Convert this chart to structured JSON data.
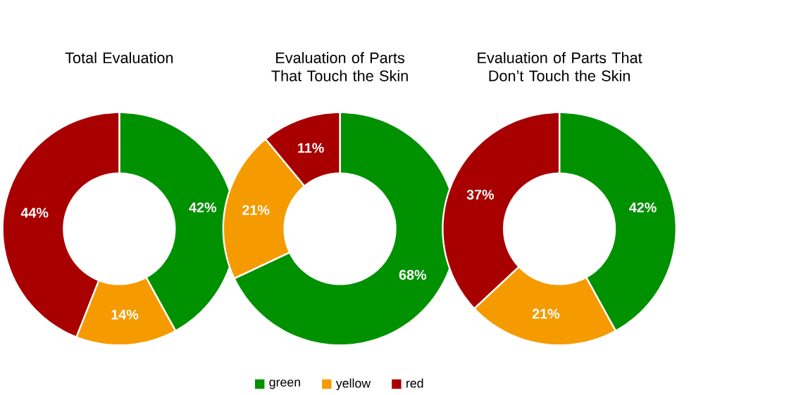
{
  "chart_data": [
    {
      "type": "donut",
      "title": "Total Evaluation",
      "categories": [
        null,
        null,
        null
      ],
      "values": [
        42,
        14,
        44
      ],
      "colors": [
        "#009100",
        "#f59b00",
        "#a80000"
      ],
      "value_labels": [
        "42%",
        "14%",
        "44%"
      ]
    },
    {
      "type": "donut",
      "title": "Evaluation of Parts That Touch the Skin",
      "categories": [
        "green",
        "yellow",
        "red"
      ],
      "values": [
        68,
        21,
        11
      ],
      "colors": [
        "#009100",
        "#f59b00",
        "#a80000"
      ],
      "value_labels": [
        "68%",
        "21%",
        "11%"
      ],
      "legend": "bottom"
    },
    {
      "type": "donut",
      "title": "Evaluation of Parts That Don’t Touch the Skin",
      "categories": [
        null,
        null,
        null
      ],
      "values": [
        42,
        21,
        37
      ],
      "colors": [
        "#009100",
        "#f59b00",
        "#a80000"
      ],
      "value_labels": [
        "42%",
        "21%",
        "37%"
      ]
    }
  ]
}
